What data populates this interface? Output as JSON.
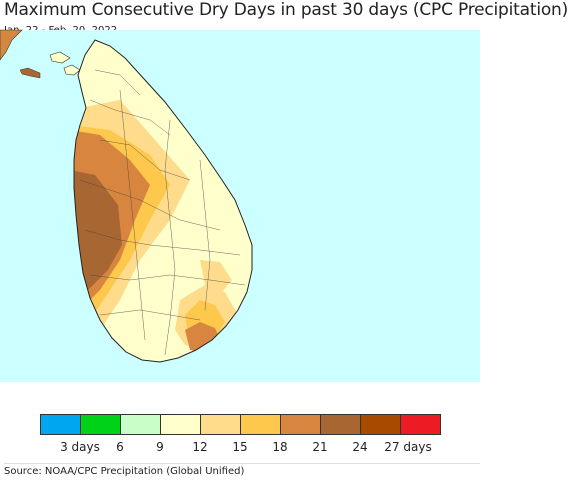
{
  "title": "Maximum Consecutive Dry Days in past 30 days (CPC Precipitation)",
  "date_range": "Jan. 22 - Feb. 20, 2022",
  "source": "Source: NOAA/CPC Precipitation (Global Unified)",
  "legend": {
    "colors": [
      "#00a6f0",
      "#00d21a",
      "#c8ffc8",
      "#ffffcb",
      "#fedc8b",
      "#fdc84c",
      "#d8863f",
      "#a86732",
      "#a84a00",
      "#ec1c24"
    ],
    "tick_labels": [
      "3 days",
      "6",
      "9",
      "12",
      "15",
      "18",
      "21",
      "24",
      "27 days"
    ]
  },
  "map_colors": {
    "ocean": "#ccffff",
    "land_base": "#ffffcc",
    "mainland_india": "#d4873f"
  },
  "map_description": {
    "region": "Sri Lanka",
    "west_coast_class": "24",
    "southeast_class": "21"
  }
}
